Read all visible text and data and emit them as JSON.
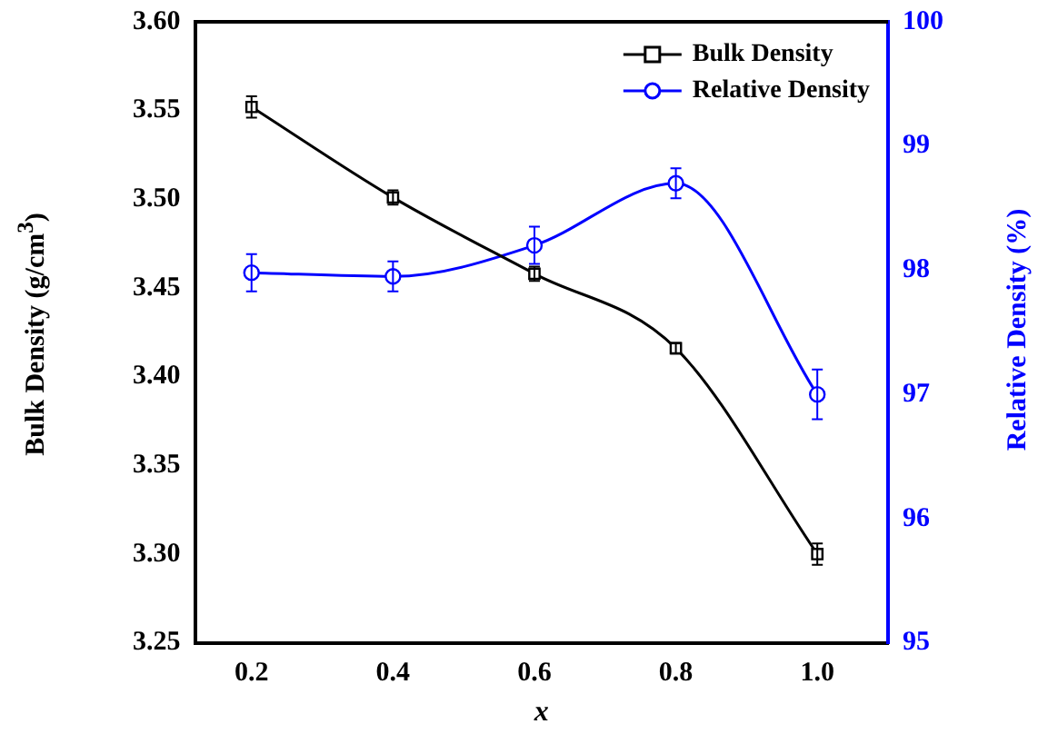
{
  "chart_data": {
    "type": "line",
    "xlabel": "x",
    "ylabel": "Bulk Density (g/cm$^{3}$)",
    "y2label": "Relative Density (%)",
    "x": [
      0.2,
      0.4,
      0.6,
      0.8,
      1.0
    ],
    "series": [
      {
        "name": "Bulk Density",
        "color": "#000000",
        "values": [
          3.552,
          3.501,
          3.458,
          3.416,
          3.3
        ],
        "errors": [
          0.006,
          0.004,
          0.004,
          0.003,
          0.006
        ],
        "marker": "square"
      },
      {
        "name": "Relative Density",
        "color": "#0000ff",
        "axis": "y2",
        "values": [
          97.98,
          97.95,
          98.2,
          98.7,
          97.0
        ],
        "errors": [
          0.15,
          0.12,
          0.15,
          0.12,
          0.2
        ],
        "marker": "circle"
      }
    ],
    "xlim": [
      0.12,
      1.1
    ],
    "xticks": [
      {
        "value": 0.2,
        "label": "0.2"
      },
      {
        "value": 0.4,
        "label": "0.4"
      },
      {
        "value": 0.6,
        "label": "0.6"
      },
      {
        "value": 0.8,
        "label": "0.8"
      },
      {
        "value": 1.0,
        "label": "1.0"
      }
    ],
    "ylim": [
      3.25,
      3.6
    ],
    "yticks": [
      {
        "value": 3.25,
        "label": "3.25"
      },
      {
        "value": 3.3,
        "label": "3.30"
      },
      {
        "value": 3.35,
        "label": "3.35"
      },
      {
        "value": 3.4,
        "label": "3.40"
      },
      {
        "value": 3.45,
        "label": "3.45"
      },
      {
        "value": 3.5,
        "label": "3.50"
      },
      {
        "value": 3.55,
        "label": "3.55"
      },
      {
        "value": 3.6,
        "label": "3.60"
      }
    ],
    "y2lim": [
      95,
      100
    ],
    "y2ticks": [
      95,
      96,
      97,
      98,
      99,
      100
    ],
    "legend": "top right",
    "grid": false
  }
}
